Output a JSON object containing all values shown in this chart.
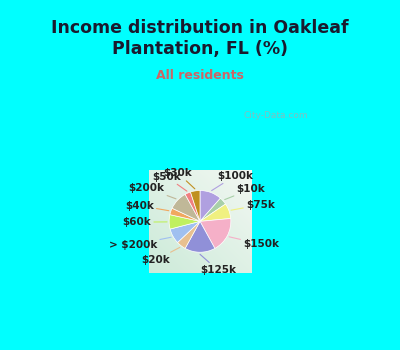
{
  "title": "Income distribution in Oakleaf\nPlantation, FL (%)",
  "subtitle": "All residents",
  "bg_cyan": "#00FFFF",
  "bg_chart_gradient_top": "#f0f8f8",
  "bg_chart_gradient_bottom": "#c8e8d8",
  "labels": [
    "$100k",
    "$10k",
    "$75k",
    "$150k",
    "$125k",
    "$20k",
    "> $200k",
    "$60k",
    "$40k",
    "$200k",
    "$50k",
    "$30k"
  ],
  "sizes": [
    11.5,
    4.0,
    8.0,
    18.5,
    16.0,
    5.0,
    8.0,
    7.5,
    3.5,
    10.0,
    3.0,
    5.0
  ],
  "colors": [
    "#b0a0e0",
    "#a8d0a8",
    "#f0f080",
    "#f5b0c8",
    "#9090d8",
    "#e8c090",
    "#a0c0f0",
    "#c0f060",
    "#f0a860",
    "#c0b898",
    "#f08080",
    "#c09020"
  ],
  "title_color": "#1a1a2e",
  "subtitle_color": "#cc6666",
  "watermark": "City-Data.com",
  "title_fontsize": 12.5,
  "subtitle_fontsize": 9,
  "label_fontsize": 7.5
}
